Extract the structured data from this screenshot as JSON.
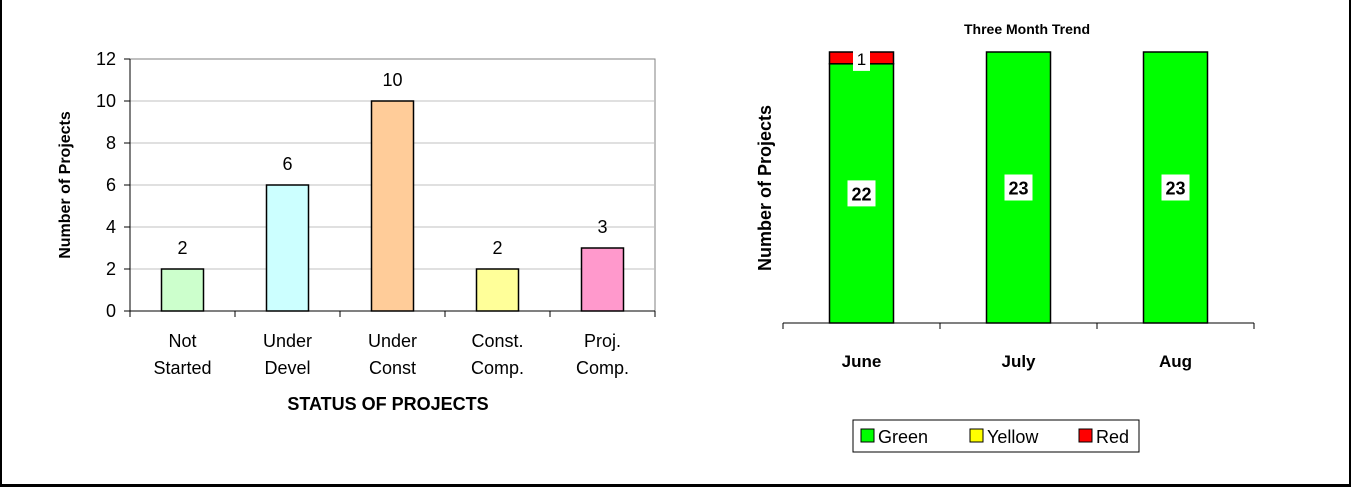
{
  "colors": {
    "status": [
      "#ccffcc",
      "#ccffff",
      "#ffcc99",
      "#ffff99",
      "#ff99cc"
    ],
    "green": "#00ff00",
    "yellow": "#ffff00",
    "red": "#ff0000"
  },
  "chart_data": [
    {
      "type": "bar",
      "title": "",
      "xlabel": "STATUS OF PROJECTS",
      "ylabel": "Number of Projects",
      "ylim": [
        0,
        12
      ],
      "yticks": [
        0,
        2,
        4,
        6,
        8,
        10,
        12
      ],
      "grid": true,
      "categories": [
        [
          "Not",
          "Started"
        ],
        [
          "Under",
          "Devel"
        ],
        [
          "Under",
          "Const"
        ],
        [
          "Const.",
          "Comp."
        ],
        [
          "Proj.",
          "Comp."
        ]
      ],
      "values": [
        2,
        6,
        10,
        2,
        3
      ]
    },
    {
      "type": "bar",
      "stacked": true,
      "title": "Three Month Trend",
      "xlabel": "",
      "ylabel": "Number of Projects",
      "legend": "bottom",
      "categories": [
        "June",
        "July",
        "Aug"
      ],
      "series": [
        {
          "name": "Green",
          "values": [
            22,
            23,
            23
          ]
        },
        {
          "name": "Yellow",
          "values": [
            0,
            0,
            0
          ]
        },
        {
          "name": "Red",
          "values": [
            1,
            0,
            0
          ]
        }
      ]
    }
  ]
}
